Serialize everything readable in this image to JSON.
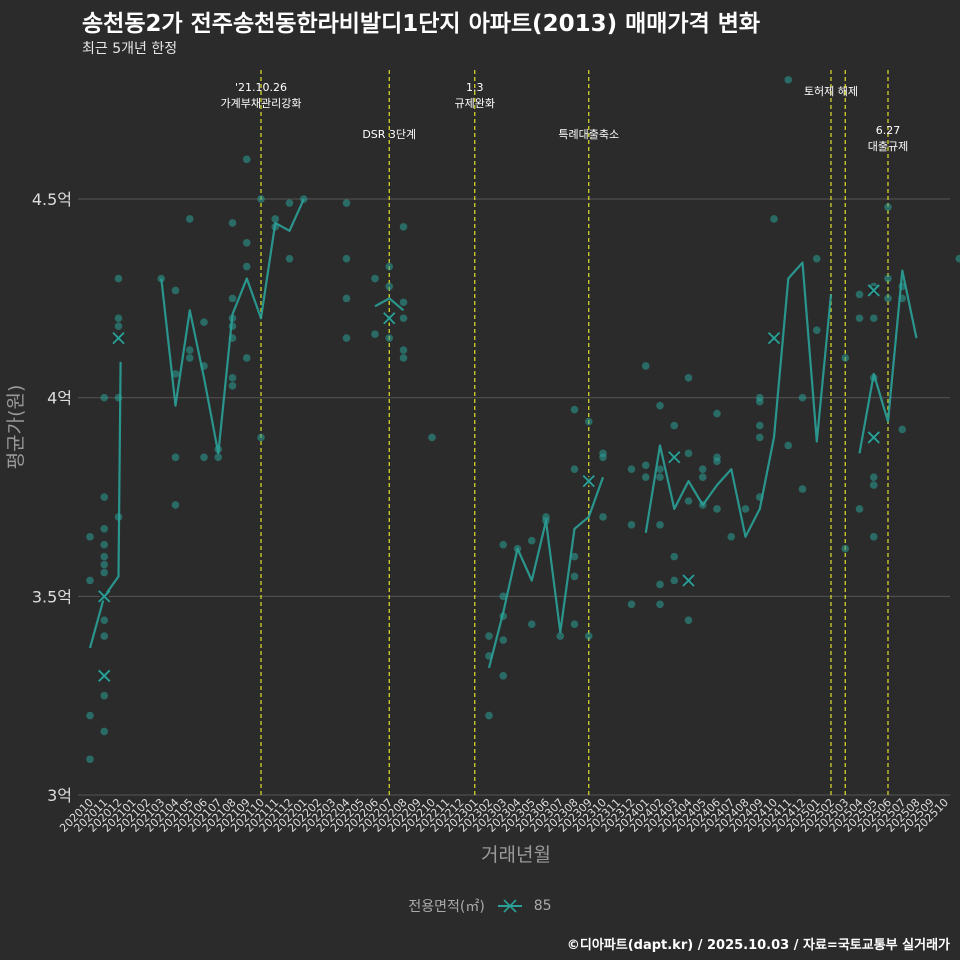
{
  "header": {
    "title": "송천동2가 전주송천동한라비발디1단지 아파트(2013) 매매가격 변화",
    "subtitle": "최근 5개년 한정"
  },
  "footer": {
    "credit": "©디아파트(dapt.kr) / 2025.10.03 / 자료=국토교통부 실거래가"
  },
  "legend": {
    "title": "전용면적(㎡)",
    "item": "85"
  },
  "colors": {
    "background": "#2b2b2b",
    "series": "#2aa198",
    "vline": "#d4d42a",
    "grid": "#555555"
  },
  "chart_data": {
    "type": "line",
    "xlabel": "거래년월",
    "ylabel": "평균가(원)",
    "ylim": [
      3.0,
      4.85
    ],
    "yticks": [
      {
        "v": 3.0,
        "label": "3억"
      },
      {
        "v": 3.5,
        "label": "3.5억"
      },
      {
        "v": 4.0,
        "label": "4억"
      },
      {
        "v": 4.5,
        "label": "4.5억"
      }
    ],
    "categories": [
      "202010",
      "202011",
      "202012",
      "202101",
      "202102",
      "202103",
      "202104",
      "202105",
      "202106",
      "202107",
      "202108",
      "202109",
      "202110",
      "202111",
      "202112",
      "202201",
      "202202",
      "202203",
      "202204",
      "202205",
      "202206",
      "202207",
      "202208",
      "202209",
      "202210",
      "202211",
      "202212",
      "202301",
      "202302",
      "202303",
      "202304",
      "202305",
      "202306",
      "202307",
      "202308",
      "202309",
      "202310",
      "202311",
      "202312",
      "202401",
      "202402",
      "202403",
      "202404",
      "202405",
      "202406",
      "202407",
      "202408",
      "202409",
      "202410",
      "202411",
      "202412",
      "202501",
      "202502",
      "202503",
      "202504",
      "202505",
      "202506",
      "202507",
      "202508",
      "202509",
      "202510"
    ],
    "events": [
      {
        "x": 12.0,
        "lines": [
          "'21.10.26",
          "가계부채관리강화"
        ],
        "level": 0
      },
      {
        "x": 21.0,
        "lines": [
          "DSR 3단계"
        ],
        "level": 1
      },
      {
        "x": 27.0,
        "lines": [
          "1.3",
          "규제완화"
        ],
        "level": 0
      },
      {
        "x": 35.0,
        "lines": [
          "특례대출축소"
        ],
        "level": 1
      },
      {
        "x": 52.0,
        "lines": [
          "토허제 해제"
        ],
        "level": 0
      },
      {
        "x": 53.0,
        "lines": [],
        "level": 0
      },
      {
        "x": 56.0,
        "lines": [
          "6.27",
          "대출규제"
        ],
        "level": 1
      }
    ],
    "series": [
      {
        "name": "85",
        "segments": [
          [
            [
              0,
              3.37
            ],
            [
              1,
              3.5
            ],
            [
              2,
              3.55
            ],
            [
              2.15,
              4.09
            ]
          ],
          [
            [
              5,
              4.3
            ],
            [
              6,
              3.98
            ],
            [
              7,
              4.22
            ],
            [
              8,
              4.05
            ],
            [
              9,
              3.86
            ],
            [
              10,
              4.21
            ],
            [
              11,
              4.3
            ],
            [
              12,
              4.2
            ],
            [
              13,
              4.44
            ],
            [
              14,
              4.42
            ],
            [
              15,
              4.5
            ]
          ],
          [
            [
              20,
              4.23
            ],
            [
              21,
              4.25
            ],
            [
              22,
              4.22
            ]
          ],
          [
            [
              28,
              3.32
            ],
            [
              29,
              3.46
            ],
            [
              30,
              3.62
            ],
            [
              31,
              3.54
            ],
            [
              32,
              3.69
            ],
            [
              33,
              3.41
            ],
            [
              34,
              3.67
            ],
            [
              35,
              3.7
            ],
            [
              36,
              3.8
            ]
          ],
          [
            [
              39,
              3.66
            ],
            [
              40,
              3.88
            ],
            [
              41,
              3.72
            ],
            [
              42,
              3.79
            ],
            [
              43,
              3.73
            ],
            [
              44,
              3.78
            ],
            [
              45,
              3.82
            ],
            [
              46,
              3.65
            ],
            [
              47,
              3.72
            ],
            [
              48,
              3.9
            ],
            [
              49,
              4.3
            ],
            [
              50,
              4.34
            ],
            [
              51,
              3.89
            ],
            [
              52,
              4.26
            ]
          ],
          [
            [
              54,
              3.86
            ],
            [
              55,
              4.06
            ],
            [
              56,
              3.94
            ],
            [
              57,
              4.32
            ],
            [
              58,
              4.15
            ]
          ]
        ],
        "points": [
          [
            0,
            3.65
          ],
          [
            0,
            3.54
          ],
          [
            0,
            3.2
          ],
          [
            0,
            3.09
          ],
          [
            1,
            3.3
          ],
          [
            1,
            3.25
          ],
          [
            1,
            3.16
          ],
          [
            1,
            3.4
          ],
          [
            1,
            3.44
          ],
          [
            1,
            3.5
          ],
          [
            1,
            3.56
          ],
          [
            1,
            3.58
          ],
          [
            1,
            3.6
          ],
          [
            1,
            3.63
          ],
          [
            1,
            3.67
          ],
          [
            1,
            3.75
          ],
          [
            1,
            4.0
          ],
          [
            2,
            4.3
          ],
          [
            2,
            4.2
          ],
          [
            2,
            4.18
          ],
          [
            2,
            4.15
          ],
          [
            2,
            4.0
          ],
          [
            2,
            3.7
          ],
          [
            5,
            4.3
          ],
          [
            6,
            4.27
          ],
          [
            6,
            4.06
          ],
          [
            6,
            3.85
          ],
          [
            6,
            3.73
          ],
          [
            7,
            4.45
          ],
          [
            7,
            4.12
          ],
          [
            7,
            4.1
          ],
          [
            8,
            4.19
          ],
          [
            8,
            4.08
          ],
          [
            8,
            3.85
          ],
          [
            9,
            3.87
          ],
          [
            9,
            3.85
          ],
          [
            10,
            4.44
          ],
          [
            10,
            4.25
          ],
          [
            10,
            4.2
          ],
          [
            10,
            4.18
          ],
          [
            10,
            4.15
          ],
          [
            10,
            4.05
          ],
          [
            10,
            4.03
          ],
          [
            11,
            4.6
          ],
          [
            11,
            4.39
          ],
          [
            11,
            4.33
          ],
          [
            11,
            4.1
          ],
          [
            12,
            4.5
          ],
          [
            12,
            3.9
          ],
          [
            13,
            4.45
          ],
          [
            13,
            4.43
          ],
          [
            14,
            4.49
          ],
          [
            14,
            4.35
          ],
          [
            15,
            4.5
          ],
          [
            18,
            4.49
          ],
          [
            18,
            4.35
          ],
          [
            18,
            4.25
          ],
          [
            18,
            4.15
          ],
          [
            20,
            4.3
          ],
          [
            20,
            4.16
          ],
          [
            21,
            4.33
          ],
          [
            21,
            4.28
          ],
          [
            21,
            4.2
          ],
          [
            21,
            4.15
          ],
          [
            22,
            4.43
          ],
          [
            22,
            4.24
          ],
          [
            22,
            4.2
          ],
          [
            22,
            4.12
          ],
          [
            22,
            4.1
          ],
          [
            24,
            3.9
          ],
          [
            28,
            3.4
          ],
          [
            28,
            3.35
          ],
          [
            28,
            3.2
          ],
          [
            29,
            3.63
          ],
          [
            29,
            3.5
          ],
          [
            29,
            3.45
          ],
          [
            29,
            3.39
          ],
          [
            29,
            3.3
          ],
          [
            30,
            3.62
          ],
          [
            31,
            3.64
          ],
          [
            31,
            3.43
          ],
          [
            32,
            3.7
          ],
          [
            32,
            3.69
          ],
          [
            33,
            3.4
          ],
          [
            34,
            3.97
          ],
          [
            34,
            3.82
          ],
          [
            34,
            3.6
          ],
          [
            34,
            3.55
          ],
          [
            34,
            3.43
          ],
          [
            35,
            3.94
          ],
          [
            35,
            3.79
          ],
          [
            35,
            3.4
          ],
          [
            36,
            3.86
          ],
          [
            36,
            3.85
          ],
          [
            36,
            3.7
          ],
          [
            38,
            3.82
          ],
          [
            38,
            3.68
          ],
          [
            38,
            3.48
          ],
          [
            39,
            4.08
          ],
          [
            39,
            3.83
          ],
          [
            39,
            3.8
          ],
          [
            40,
            3.98
          ],
          [
            40,
            3.82
          ],
          [
            40,
            3.8
          ],
          [
            40,
            3.68
          ],
          [
            40,
            3.53
          ],
          [
            40,
            3.48
          ],
          [
            41,
            3.93
          ],
          [
            41,
            3.85
          ],
          [
            41,
            3.6
          ],
          [
            41,
            3.54
          ],
          [
            42,
            4.05
          ],
          [
            42,
            3.86
          ],
          [
            42,
            3.74
          ],
          [
            42,
            3.54
          ],
          [
            42,
            3.44
          ],
          [
            43,
            3.82
          ],
          [
            43,
            3.8
          ],
          [
            43,
            3.73
          ],
          [
            44,
            3.96
          ],
          [
            44,
            3.85
          ],
          [
            44,
            3.84
          ],
          [
            44,
            3.72
          ],
          [
            45,
            3.65
          ],
          [
            46,
            3.72
          ],
          [
            47,
            4.0
          ],
          [
            47,
            3.99
          ],
          [
            47,
            3.93
          ],
          [
            47,
            3.9
          ],
          [
            47,
            3.75
          ],
          [
            48,
            4.45
          ],
          [
            48,
            4.15
          ],
          [
            49,
            4.8
          ],
          [
            49,
            3.88
          ],
          [
            50,
            4.0
          ],
          [
            50,
            3.77
          ],
          [
            51,
            4.35
          ],
          [
            51,
            4.17
          ],
          [
            53,
            4.1
          ],
          [
            53,
            3.62
          ],
          [
            54,
            4.26
          ],
          [
            54,
            4.2
          ],
          [
            54,
            3.72
          ],
          [
            55,
            4.28
          ],
          [
            55,
            4.2
          ],
          [
            55,
            4.05
          ],
          [
            55,
            3.9
          ],
          [
            55,
            3.8
          ],
          [
            55,
            3.78
          ],
          [
            55,
            3.65
          ],
          [
            56,
            4.48
          ],
          [
            56,
            4.3
          ],
          [
            56,
            4.25
          ],
          [
            57,
            4.28
          ],
          [
            57,
            4.25
          ],
          [
            57,
            3.92
          ],
          [
            61,
            4.35
          ]
        ],
        "crosses": [
          [
            1,
            3.5
          ],
          [
            1,
            3.3
          ],
          [
            2,
            4.15
          ],
          [
            21,
            4.2
          ],
          [
            35,
            3.79
          ],
          [
            41,
            3.85
          ],
          [
            42,
            3.54
          ],
          [
            48,
            4.15
          ],
          [
            55,
            4.27
          ],
          [
            55,
            3.9
          ]
        ]
      }
    ]
  }
}
